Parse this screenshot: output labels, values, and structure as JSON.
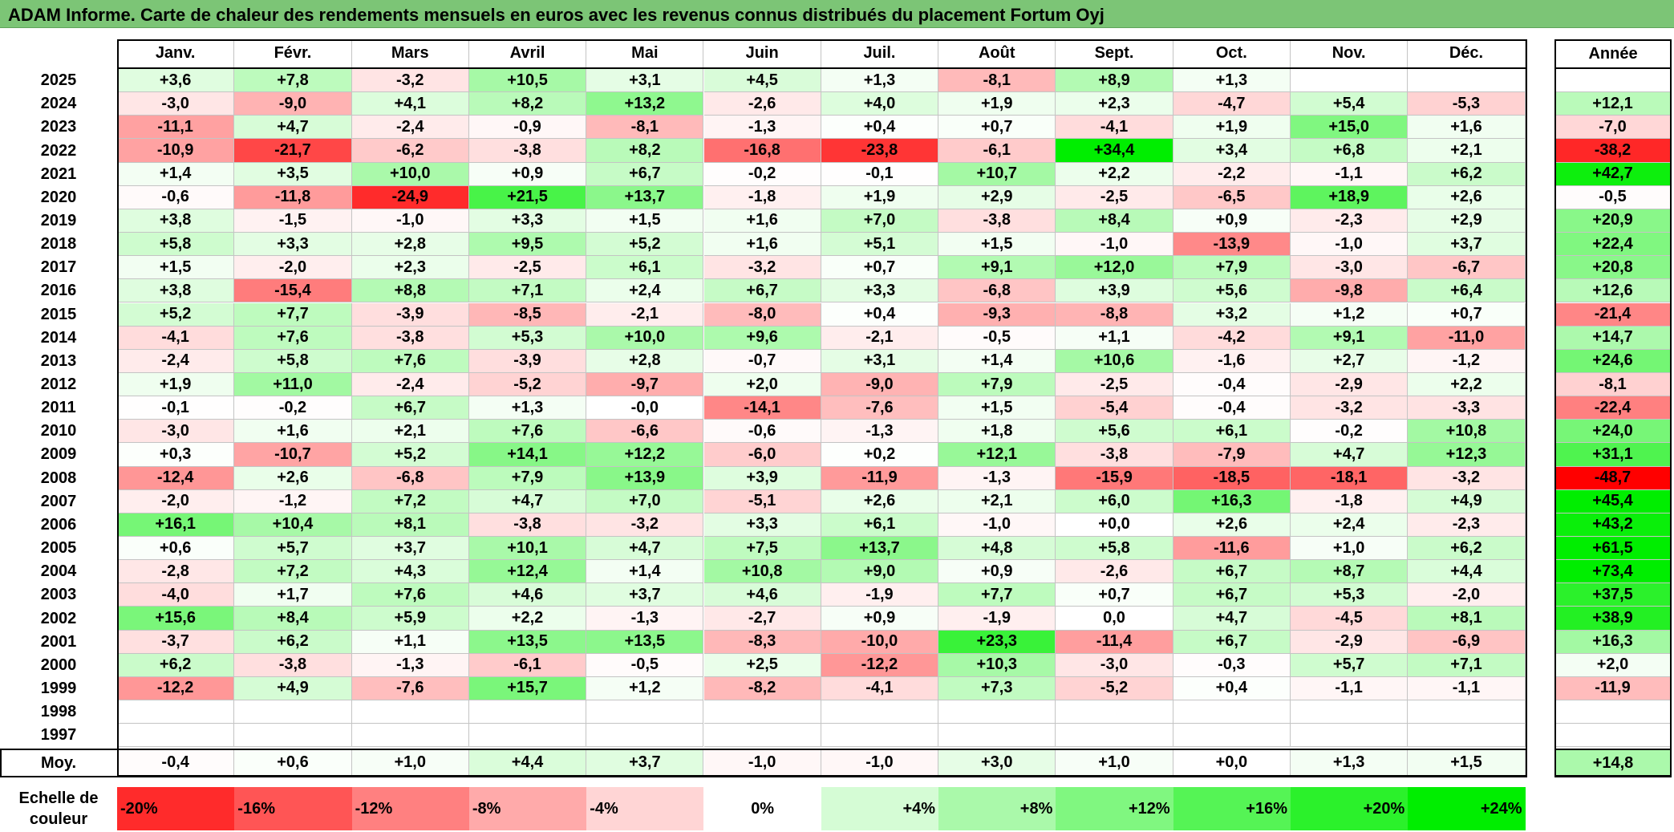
{
  "title": "ADAM Informe. Carte de chaleur des rendements mensuels en euros avec les revenus connus distribués du placement Fortum Oyj",
  "colors": {
    "title_bg": "#7cc576",
    "negative_max": "#ff0000",
    "positive_max": "#00ee00",
    "neutral": "#ffffff"
  },
  "chart_data": {
    "type": "heatmap",
    "months": [
      "Janv.",
      "Févr.",
      "Mars",
      "Avril",
      "Mai",
      "Juin",
      "Juil.",
      "Août",
      "Sept.",
      "Oct.",
      "Nov.",
      "Déc."
    ],
    "year_header": "Année",
    "avg_label": "Moy.",
    "rows": [
      {
        "year": "2025",
        "values": [
          "+3,6",
          "+7,8",
          "-3,2",
          "+10,5",
          "+3,1",
          "+4,5",
          "+1,3",
          "-8,1",
          "+8,9",
          "+1,3",
          "",
          ""
        ],
        "annual": ""
      },
      {
        "year": "2024",
        "values": [
          "-3,0",
          "-9,0",
          "+4,1",
          "+8,2",
          "+13,2",
          "-2,6",
          "+4,0",
          "+1,9",
          "+2,3",
          "-4,7",
          "+5,4",
          "-5,3"
        ],
        "annual": "+12,1"
      },
      {
        "year": "2023",
        "values": [
          "-11,1",
          "+4,7",
          "-2,4",
          "-0,9",
          "-8,1",
          "-1,3",
          "+0,4",
          "+0,7",
          "-4,1",
          "+1,9",
          "+15,0",
          "+1,6"
        ],
        "annual": "-7,0"
      },
      {
        "year": "2022",
        "values": [
          "-10,9",
          "-21,7",
          "-6,2",
          "-3,8",
          "+8,2",
          "-16,8",
          "-23,8",
          "-6,1",
          "+34,4",
          "+3,4",
          "+6,8",
          "+2,1"
        ],
        "annual": "-38,2"
      },
      {
        "year": "2021",
        "values": [
          "+1,4",
          "+3,5",
          "+10,0",
          "+0,9",
          "+6,7",
          "-0,2",
          "-0,1",
          "+10,7",
          "+2,2",
          "-2,2",
          "-1,1",
          "+6,2"
        ],
        "annual": "+42,7"
      },
      {
        "year": "2020",
        "values": [
          "-0,6",
          "-11,8",
          "-24,9",
          "+21,5",
          "+13,7",
          "-1,8",
          "+1,9",
          "+2,9",
          "-2,5",
          "-6,5",
          "+18,9",
          "+2,6"
        ],
        "annual": "-0,5"
      },
      {
        "year": "2019",
        "values": [
          "+3,8",
          "-1,5",
          "-1,0",
          "+3,3",
          "+1,5",
          "+1,6",
          "+7,0",
          "-3,8",
          "+8,4",
          "+0,9",
          "-2,3",
          "+2,9"
        ],
        "annual": "+20,9"
      },
      {
        "year": "2018",
        "values": [
          "+5,8",
          "+3,3",
          "+2,8",
          "+9,5",
          "+5,2",
          "+1,6",
          "+5,1",
          "+1,5",
          "-1,0",
          "-13,9",
          "-1,0",
          "+3,7"
        ],
        "annual": "+22,4"
      },
      {
        "year": "2017",
        "values": [
          "+1,5",
          "-2,0",
          "+2,3",
          "-2,5",
          "+6,1",
          "-3,2",
          "+0,7",
          "+9,1",
          "+12,0",
          "+7,9",
          "-3,0",
          "-6,7"
        ],
        "annual": "+20,8"
      },
      {
        "year": "2016",
        "values": [
          "+3,8",
          "-15,4",
          "+8,8",
          "+7,1",
          "+2,4",
          "+6,7",
          "+3,3",
          "-6,8",
          "+3,9",
          "+5,6",
          "-9,8",
          "+6,4"
        ],
        "annual": "+12,6"
      },
      {
        "year": "2015",
        "values": [
          "+5,2",
          "+7,7",
          "-3,9",
          "-8,5",
          "-2,1",
          "-8,0",
          "+0,4",
          "-9,3",
          "-8,8",
          "+3,2",
          "+1,2",
          "+0,7"
        ],
        "annual": "-21,4"
      },
      {
        "year": "2014",
        "values": [
          "-4,1",
          "+7,6",
          "-3,8",
          "+5,3",
          "+10,0",
          "+9,6",
          "-2,1",
          "-0,5",
          "+1,1",
          "-4,2",
          "+9,1",
          "-11,0"
        ],
        "annual": "+14,7"
      },
      {
        "year": "2013",
        "values": [
          "-2,4",
          "+5,8",
          "+7,6",
          "-3,9",
          "+2,8",
          "-0,7",
          "+3,1",
          "+1,4",
          "+10,6",
          "-1,6",
          "+2,7",
          "-1,2"
        ],
        "annual": "+24,6"
      },
      {
        "year": "2012",
        "values": [
          "+1,9",
          "+11,0",
          "-2,4",
          "-5,2",
          "-9,7",
          "+2,0",
          "-9,0",
          "+7,9",
          "-2,5",
          "-0,4",
          "-2,9",
          "+2,2"
        ],
        "annual": "-8,1"
      },
      {
        "year": "2011",
        "values": [
          "-0,1",
          "-0,2",
          "+6,7",
          "+1,3",
          "-0,0",
          "-14,1",
          "-7,6",
          "+1,5",
          "-5,4",
          "-0,4",
          "-3,2",
          "-3,3"
        ],
        "annual": "-22,4"
      },
      {
        "year": "2010",
        "values": [
          "-3,0",
          "+1,6",
          "+2,1",
          "+7,6",
          "-6,6",
          "-0,6",
          "-1,3",
          "+1,8",
          "+5,6",
          "+6,1",
          "-0,2",
          "+10,8"
        ],
        "annual": "+24,0"
      },
      {
        "year": "2009",
        "values": [
          "+0,3",
          "-10,7",
          "+5,2",
          "+14,1",
          "+12,2",
          "-6,0",
          "+0,2",
          "+12,1",
          "-3,8",
          "-7,9",
          "+4,7",
          "+12,3"
        ],
        "annual": "+31,1"
      },
      {
        "year": "2008",
        "values": [
          "-12,4",
          "+2,6",
          "-6,8",
          "+7,9",
          "+13,9",
          "+3,9",
          "-11,9",
          "-1,3",
          "-15,9",
          "-18,5",
          "-18,1",
          "-3,2"
        ],
        "annual": "-48,7"
      },
      {
        "year": "2007",
        "values": [
          "-2,0",
          "-1,2",
          "+7,2",
          "+4,7",
          "+7,0",
          "-5,1",
          "+2,6",
          "+2,1",
          "+6,0",
          "+16,3",
          "-1,8",
          "+4,9"
        ],
        "annual": "+45,4"
      },
      {
        "year": "2006",
        "values": [
          "+16,1",
          "+10,4",
          "+8,1",
          "-3,8",
          "-3,2",
          "+3,3",
          "+6,1",
          "-1,0",
          "+0,0",
          "+2,6",
          "+2,4",
          "-2,3"
        ],
        "annual": "+43,2"
      },
      {
        "year": "2005",
        "values": [
          "+0,6",
          "+5,7",
          "+3,7",
          "+10,1",
          "+4,7",
          "+7,5",
          "+13,7",
          "+4,8",
          "+5,8",
          "-11,6",
          "+1,0",
          "+6,2"
        ],
        "annual": "+61,5"
      },
      {
        "year": "2004",
        "values": [
          "-2,8",
          "+7,2",
          "+4,3",
          "+12,4",
          "+1,4",
          "+10,8",
          "+9,0",
          "+0,9",
          "-2,6",
          "+6,7",
          "+8,7",
          "+4,4"
        ],
        "annual": "+73,4"
      },
      {
        "year": "2003",
        "values": [
          "-4,0",
          "+1,7",
          "+7,6",
          "+4,6",
          "+3,7",
          "+4,6",
          "-1,9",
          "+7,7",
          "+0,7",
          "+6,7",
          "+5,3",
          "-2,0"
        ],
        "annual": "+37,5"
      },
      {
        "year": "2002",
        "values": [
          "+15,6",
          "+8,4",
          "+5,9",
          "+2,2",
          "-1,3",
          "-2,7",
          "+0,9",
          "-1,9",
          "0,0",
          "+4,7",
          "-4,5",
          "+8,1"
        ],
        "annual": "+38,9"
      },
      {
        "year": "2001",
        "values": [
          "-3,7",
          "+6,2",
          "+1,1",
          "+13,5",
          "+13,5",
          "-8,3",
          "-10,0",
          "+23,3",
          "-11,4",
          "+6,7",
          "-2,9",
          "-6,9"
        ],
        "annual": "+16,3"
      },
      {
        "year": "2000",
        "values": [
          "+6,2",
          "-3,8",
          "-1,3",
          "-6,1",
          "-0,5",
          "+2,5",
          "-12,2",
          "+10,3",
          "-3,0",
          "-0,3",
          "+5,7",
          "+7,1"
        ],
        "annual": "+2,0"
      },
      {
        "year": "1999",
        "values": [
          "-12,2",
          "+4,9",
          "-7,6",
          "+15,7",
          "+1,2",
          "-8,2",
          "-4,1",
          "+7,3",
          "-5,2",
          "+0,4",
          "-1,1",
          "-1,1"
        ],
        "annual": "-11,9"
      },
      {
        "year": "1998",
        "values": [
          "",
          "",
          "",
          "",
          "",
          "",
          "",
          "",
          "",
          "",
          "",
          ""
        ],
        "annual": ""
      },
      {
        "year": "1997",
        "values": [
          "",
          "",
          "",
          "",
          "",
          "",
          "",
          "",
          "",
          "",
          "",
          ""
        ],
        "annual": ""
      }
    ],
    "averages": {
      "values": [
        "-0,4",
        "+0,6",
        "+1,0",
        "+4,4",
        "+3,7",
        "-1,0",
        "-1,0",
        "+3,0",
        "+1,0",
        "+0,0",
        "+1,3",
        "+1,5"
      ],
      "annual": "+14,8"
    },
    "legend": {
      "label": "Echelle de couleur",
      "steps": [
        "-20%",
        "-16%",
        "-12%",
        "-8%",
        "-4%",
        "0%",
        "+4%",
        "+8%",
        "+12%",
        "+16%",
        "+20%",
        "+24%"
      ]
    }
  }
}
